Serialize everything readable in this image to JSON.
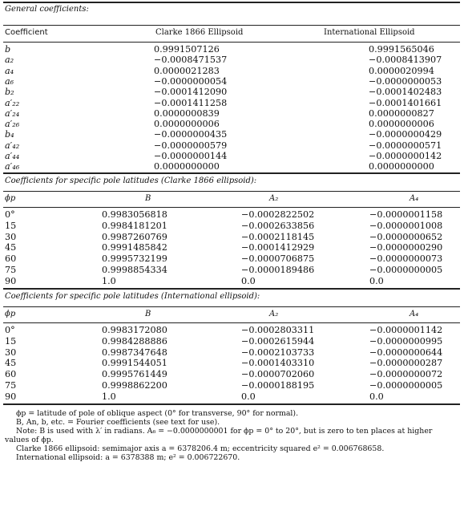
{
  "general": {
    "label": "General coefficients:",
    "headers": [
      "Coefficient",
      "Clarke 1866 Ellipsoid",
      "International Ellipsoid"
    ],
    "rows": [
      {
        "c": "b",
        "clarke": "0.9991507126",
        "intl": "0.9991565046"
      },
      {
        "c": "a₂",
        "clarke": "−0.0008471537",
        "intl": "−0.0008413907"
      },
      {
        "c": "a₄",
        "clarke": "0.0000021283",
        "intl": "0.0000020994"
      },
      {
        "c": "a₆",
        "clarke": "−0.0000000054",
        "intl": "−0.0000000053"
      },
      {
        "c": "b₂",
        "clarke": "−0.0001412090",
        "intl": "−0.0001402483"
      },
      {
        "c": "a′₂₂",
        "clarke": "−0.0001411258",
        "intl": "−0.0001401661"
      },
      {
        "c": "a′₂₄",
        "clarke": "0.0000000839",
        "intl": "0.0000000827"
      },
      {
        "c": "a′₂₆",
        "clarke": "0.0000000006",
        "intl": "0.0000000006"
      },
      {
        "c": "b₄",
        "clarke": "−0.0000000435",
        "intl": "−0.0000000429"
      },
      {
        "c": "a′₄₂",
        "clarke": "−0.0000000579",
        "intl": "−0.0000000571"
      },
      {
        "c": "a′₄₄",
        "clarke": "−0.0000000144",
        "intl": "−0.0000000142"
      },
      {
        "c": "a′₄₆",
        "clarke": "0.0000000000",
        "intl": "0.0000000000"
      }
    ]
  },
  "clarke": {
    "label": "Coefficients for specific pole latitudes (Clarke 1866 ellipsoid):",
    "headers": [
      "ϕp",
      "B",
      "A₂",
      "A₄"
    ],
    "rows": [
      {
        "phi": "0°",
        "B": "0.9983056818",
        "A2": "−0.0002822502",
        "A4": "−0.0000001158"
      },
      {
        "phi": "15",
        "B": "0.9984181201",
        "A2": "−0.0002633856",
        "A4": "−0.0000001008"
      },
      {
        "phi": "30",
        "B": "0.9987260769",
        "A2": "−0.0002118145",
        "A4": "−0.0000000652"
      },
      {
        "phi": "45",
        "B": "0.9991485842",
        "A2": "−0.0001412929",
        "A4": "−0.0000000290"
      },
      {
        "phi": "60",
        "B": "0.9995732199",
        "A2": "−0.0000706875",
        "A4": "−0.0000000073"
      },
      {
        "phi": "75",
        "B": "0.9998854334",
        "A2": "−0.0000189486",
        "A4": "−0.0000000005"
      },
      {
        "phi": "90",
        "B": "1.0",
        "A2": "0.0",
        "A4": "0.0"
      }
    ]
  },
  "international": {
    "label": "Coefficients for specific pole latitudes (International ellipsoid):",
    "headers": [
      "ϕp",
      "B",
      "A₂",
      "A₄"
    ],
    "rows": [
      {
        "phi": "0°",
        "B": "0.9983172080",
        "A2": "−0.0002803311",
        "A4": "−0.0000001142"
      },
      {
        "phi": "15",
        "B": "0.9984288886",
        "A2": "−0.0002615944",
        "A4": "−0.0000000995"
      },
      {
        "phi": "30",
        "B": "0.9987347648",
        "A2": "−0.0002103733",
        "A4": "−0.0000000644"
      },
      {
        "phi": "45",
        "B": "0.9991544051",
        "A2": "−0.0001403310",
        "A4": "−0.0000000287"
      },
      {
        "phi": "60",
        "B": "0.9995761449",
        "A2": "−0.0000702060",
        "A4": "−0.0000000072"
      },
      {
        "phi": "75",
        "B": "0.9998862200",
        "A2": "−0.0000188195",
        "A4": "−0.0000000005"
      },
      {
        "phi": "90",
        "B": "1.0",
        "A2": "0.0",
        "A4": "0.0"
      }
    ]
  },
  "notes": [
    "ϕp = latitude of pole of oblique aspect (0° for transverse, 90° for normal).",
    "B, An, b, etc. = Fourier coefficients (see text for use).",
    "Note: B is used with λ′ in radians. A₆ = −0.0000000001 for ϕp = 0° to 20°, but is zero to ten places at higher",
    "values of ϕp.",
    "Clarke 1866 ellipsoid: semimajor axis a = 6378206.4 m; eccentricity squared e² = 0.006768658.",
    "International ellipsoid: a = 6378388 m; e² = 0.006722670."
  ]
}
